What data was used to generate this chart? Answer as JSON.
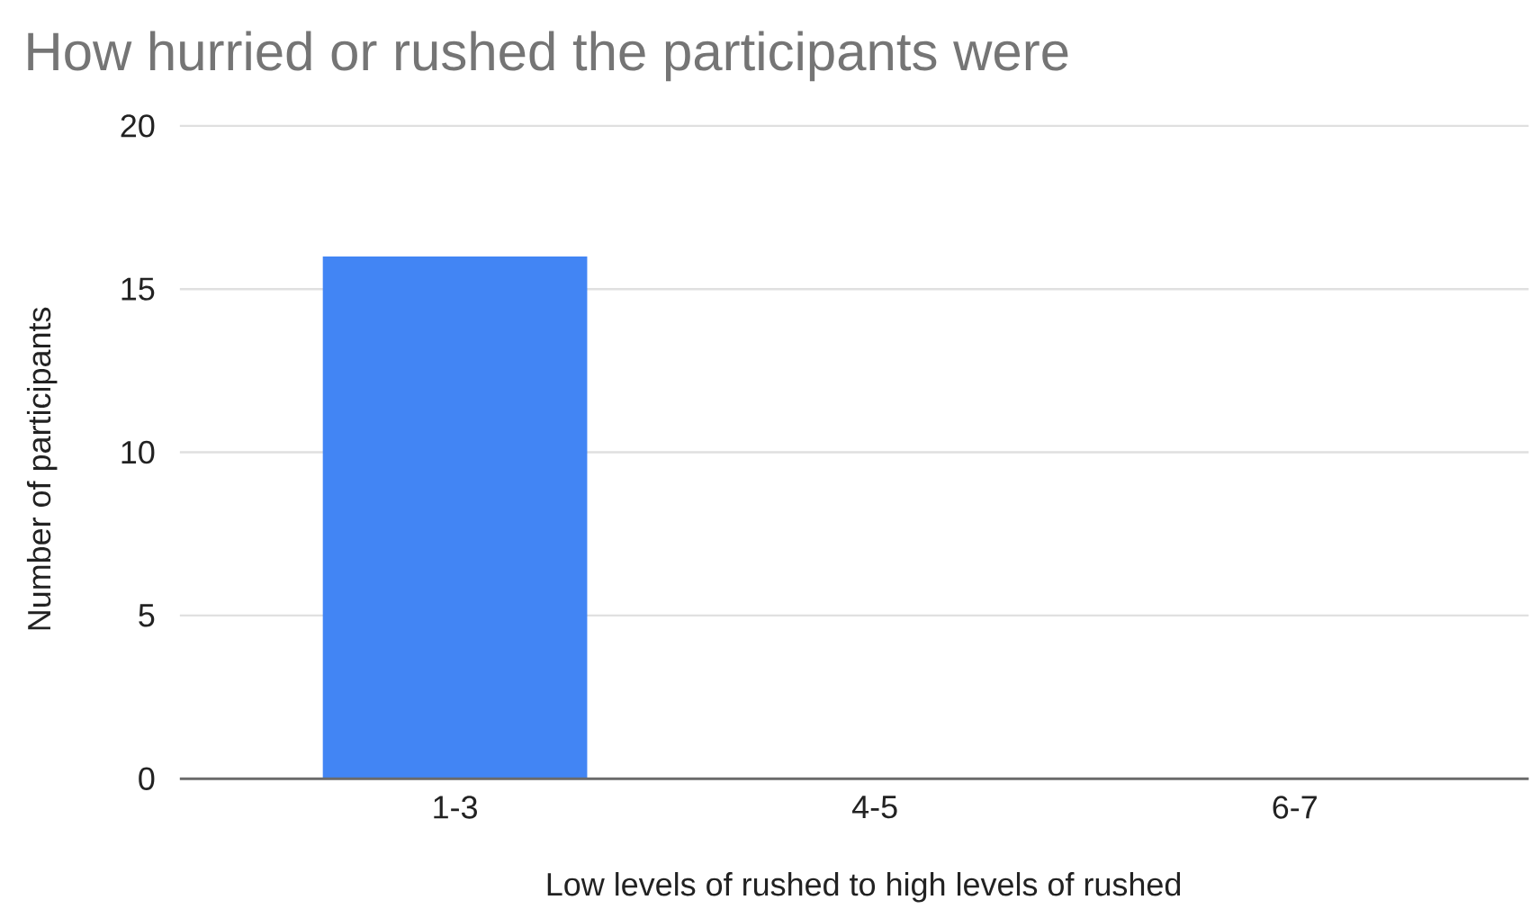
{
  "chart_data": {
    "type": "bar",
    "title": "How hurried or rushed the participants were",
    "xlabel": "Low levels of rushed to high levels of rushed",
    "ylabel": "Number of participants",
    "categories": [
      "1-3",
      "4-5",
      "6-7"
    ],
    "values": [
      16,
      0,
      0
    ],
    "color": "#4285f4",
    "ylim": [
      0,
      20
    ],
    "yticks": [
      0,
      5,
      10,
      15,
      20
    ],
    "grid": "y"
  }
}
